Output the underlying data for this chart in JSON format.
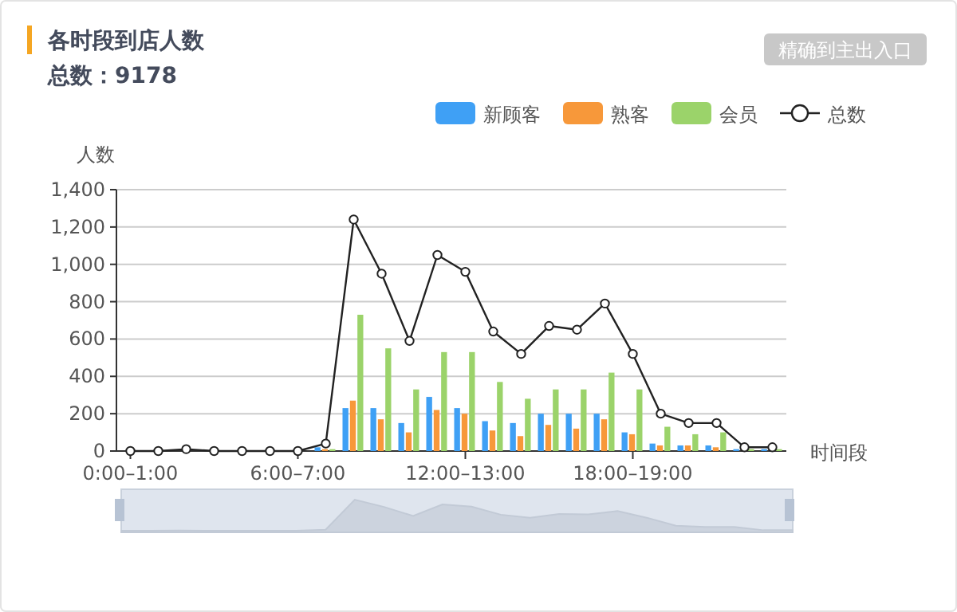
{
  "chart_data": {
    "type": "bar",
    "title": "各时段到店人数",
    "subtitle": "总数：9178",
    "xlabel": "时间段",
    "ylabel": "人数",
    "annotations": [
      "精确到主出入口"
    ],
    "categories": [
      "0:00–1:00",
      null,
      null,
      null,
      null,
      null,
      "6:00–7:00",
      null,
      null,
      null,
      null,
      null,
      "12:00–13:00",
      null,
      null,
      null,
      null,
      null,
      "18:00–19:00",
      null,
      null,
      null,
      null,
      null
    ],
    "series": [
      {
        "name": "新顾客",
        "color": "#3fa0f5",
        "values": [
          0,
          0,
          0,
          0,
          0,
          0,
          0,
          20,
          230,
          230,
          150,
          290,
          230,
          160,
          150,
          200,
          200,
          200,
          100,
          40,
          30,
          30,
          10,
          10
        ]
      },
      {
        "name": "熟客",
        "color": "#f7983a",
        "values": [
          0,
          0,
          0,
          0,
          0,
          0,
          0,
          10,
          270,
          170,
          100,
          220,
          200,
          110,
          80,
          140,
          120,
          170,
          90,
          30,
          30,
          20,
          0,
          0
        ]
      },
      {
        "name": "会员",
        "color": "#9bd36a",
        "values": [
          0,
          0,
          0,
          0,
          0,
          0,
          0,
          10,
          730,
          550,
          330,
          530,
          530,
          370,
          280,
          330,
          330,
          420,
          330,
          130,
          90,
          100,
          10,
          10
        ]
      },
      {
        "name": "总数",
        "type": "line",
        "color": "#222222",
        "marker": "circle",
        "values": [
          0,
          0,
          10,
          0,
          0,
          0,
          0,
          40,
          1240,
          950,
          590,
          1050,
          960,
          640,
          520,
          670,
          650,
          790,
          520,
          200,
          150,
          150,
          20,
          20
        ]
      }
    ],
    "ylim": [
      0,
      1400
    ],
    "yticks": [
      0,
      {
        "value": 200,
        "label": "200"
      },
      {
        "value": 400,
        "label": "400"
      },
      {
        "value": 600,
        "label": "600"
      },
      {
        "value": 800,
        "label": "800"
      },
      {
        "value": 1000,
        "label": "1,000"
      },
      {
        "value": 1200,
        "label": "1,200"
      },
      {
        "value": 1400,
        "label": "1,400"
      }
    ],
    "grid": "y",
    "legend": "top right"
  }
}
